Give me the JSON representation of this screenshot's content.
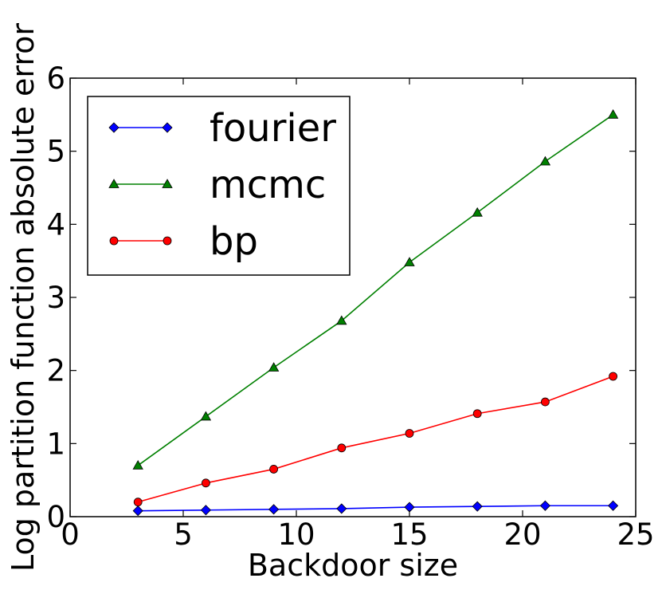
{
  "chart_data": {
    "type": "line",
    "xlabel": "Backdoor size",
    "ylabel": "Log partition function absolute error",
    "xlim": [
      0,
      25
    ],
    "ylim": [
      0,
      6
    ],
    "xticks": [
      0,
      5,
      10,
      15,
      20,
      25
    ],
    "yticks": [
      0,
      1,
      2,
      3,
      4,
      5,
      6
    ],
    "grid": false,
    "legend": "top-left",
    "x": [
      3,
      6,
      9,
      12,
      15,
      18,
      21,
      24
    ],
    "series": [
      {
        "name": "fourier",
        "color": "#0000ff",
        "marker": "diamond",
        "values": [
          0.08,
          0.09,
          0.1,
          0.11,
          0.13,
          0.14,
          0.15,
          0.15
        ]
      },
      {
        "name": "mcmc",
        "color": "#008000",
        "marker": "triangle",
        "values": [
          0.7,
          1.37,
          2.04,
          2.68,
          3.48,
          4.16,
          4.86,
          5.5
        ]
      },
      {
        "name": "bp",
        "color": "#ff0000",
        "marker": "circle",
        "values": [
          0.2,
          0.46,
          0.65,
          0.94,
          1.14,
          1.41,
          1.57,
          1.92
        ]
      }
    ]
  }
}
